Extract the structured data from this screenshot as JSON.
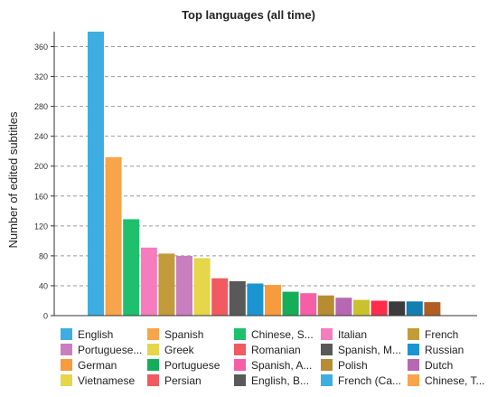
{
  "chart_data": {
    "type": "bar",
    "title": "Top languages (all time)",
    "xlabel": "",
    "ylabel": "Number of edited subtitles",
    "ylim": [
      0,
      380
    ],
    "yticks": [
      0,
      40,
      80,
      120,
      160,
      200,
      240,
      280,
      320,
      360
    ],
    "grid": true,
    "legend_position": "bottom",
    "categories": [
      "English",
      "Spanish",
      "Chinese, S...",
      "Italian",
      "French",
      "Portuguese...",
      "Greek",
      "Romanian",
      "Spanish, M...",
      "Russian",
      "German",
      "Portuguese",
      "Spanish, A...",
      "Polish",
      "Dutch",
      "Vietnamese",
      "Persian",
      "English, B...",
      "French (Ca...",
      "Chinese, T..."
    ],
    "values": [
      380,
      212,
      129,
      91,
      83,
      80,
      77,
      50,
      46,
      43,
      41,
      32,
      30,
      27,
      24,
      21,
      20,
      19,
      19,
      18
    ],
    "colors": [
      "#3eaee2",
      "#f8a44a",
      "#1ec06e",
      "#f67bbf",
      "#c49b3b",
      "#c97ec0",
      "#e5d64a",
      "#f05a60",
      "#595959",
      "#1b95d2",
      "#f89b3d",
      "#14ae59",
      "#f65ea8",
      "#b88d32",
      "#b867b3",
      "#c9c22e",
      "#ff2c4b",
      "#3c3c3c",
      "#127fb3",
      "#b25e22"
    ],
    "legend_colors": [
      "#3eaee2",
      "#f8a44a",
      "#1ec06e",
      "#f67bbf",
      "#c49b3b",
      "#c97ec0",
      "#e5d64a",
      "#f05a60",
      "#595959",
      "#1b95d2",
      "#f89b3d",
      "#14ae59",
      "#f65ea8",
      "#b88d32",
      "#b867b3",
      "#e5d64a",
      "#f05a60",
      "#595959",
      "#3eaee2",
      "#f8a44a"
    ]
  }
}
